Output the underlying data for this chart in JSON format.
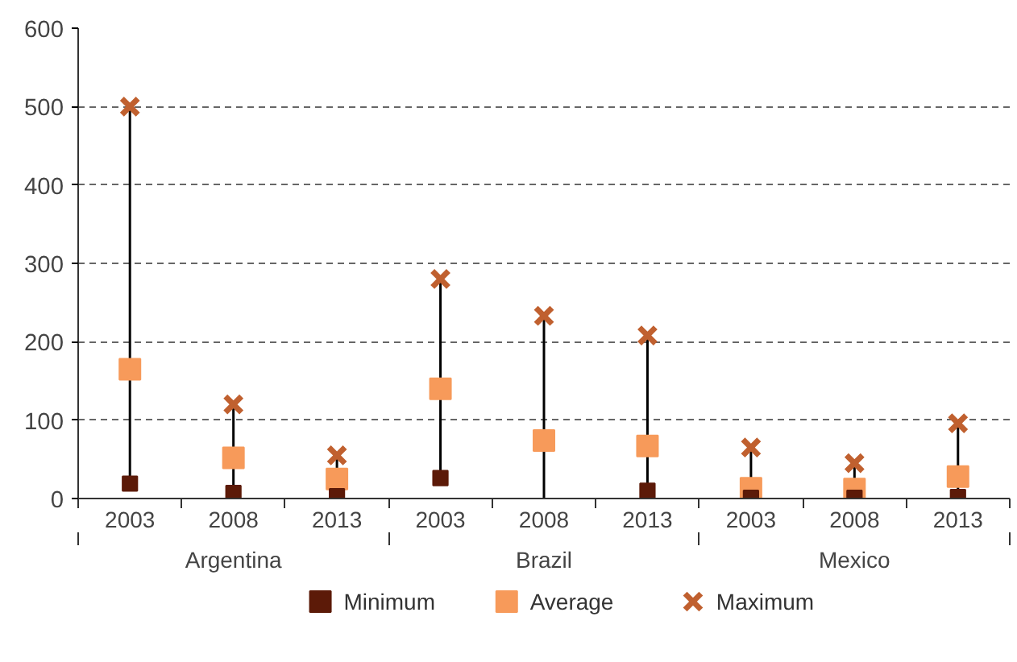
{
  "chart_data": {
    "type": "scatter",
    "categories": [
      "2003",
      "2008",
      "2013",
      "2003",
      "2008",
      "2013",
      "2003",
      "2008",
      "2013"
    ],
    "annotations": [
      "Argentina",
      "Brazil",
      "Mexico"
    ],
    "series": [
      {
        "name": "Minimum",
        "color": "#5c1a08",
        "marker": "square",
        "values": [
          19,
          7,
          3,
          26,
          null,
          10,
          1,
          1,
          2
        ]
      },
      {
        "name": "Average",
        "color": "#f79a5a",
        "marker": "square",
        "values": [
          165,
          52,
          25,
          140,
          74,
          67,
          13,
          12,
          28
        ]
      },
      {
        "name": "Maximum",
        "color": "#c0602f",
        "marker": "cross",
        "values": [
          500,
          120,
          55,
          280,
          233,
          208,
          65,
          45,
          96
        ]
      }
    ],
    "ylim": [
      0,
      600
    ],
    "yticks": [
      0,
      100,
      200,
      300,
      400,
      500,
      600
    ],
    "grid": "y",
    "legend": "bottom"
  }
}
